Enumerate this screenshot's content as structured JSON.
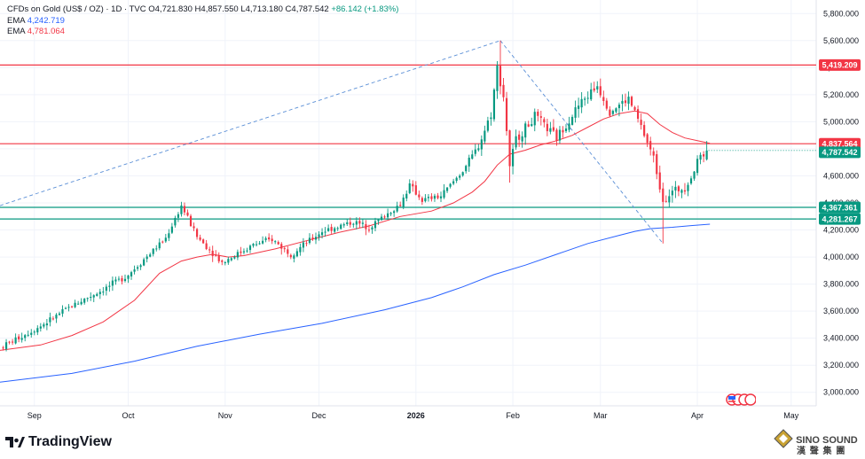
{
  "header": {
    "symbol": "CFDs on Gold (US$ / OZ) · 1D · TVC",
    "open_label": "O",
    "open": "4,721.830",
    "high_label": "H",
    "high": "4,857.550",
    "low_label": "L",
    "low": "4,713.180",
    "close_label": "C",
    "close": "4,787.542",
    "change": "+86.142 (+1.83%)"
  },
  "indicators": [
    {
      "name": "EMA",
      "value": "4,242.719",
      "color": "#2962ff"
    },
    {
      "name": "EMA",
      "value": "4,781.064",
      "color": "#f23645"
    }
  ],
  "branding": {
    "logo_text": "TradingView",
    "watermark": "SINO SOUND",
    "watermark_cn": "漢 聲 集 團"
  },
  "chart_data": {
    "type": "candlestick",
    "title": "CFDs on Gold (US$ / OZ) · 1D · TVC",
    "ylim": [
      2900,
      5900
    ],
    "y_ticks": [
      "3,000.000",
      "3,200.000",
      "3,400.000",
      "3,600.000",
      "3,800.000",
      "4,000.000",
      "4,200.000",
      "4,400.000",
      "4,600.000",
      "4,800.000",
      "5,000.000",
      "5,200.000",
      "5,400.000",
      "5,600.000",
      "5,800.000"
    ],
    "x_labels": [
      {
        "label": "Sep",
        "day": 8,
        "bold": false
      },
      {
        "label": "Oct",
        "day": 38,
        "bold": false
      },
      {
        "label": "Nov",
        "day": 69,
        "bold": false
      },
      {
        "label": "Dec",
        "day": 99,
        "bold": false
      },
      {
        "label": "2026",
        "day": 130,
        "bold": true
      },
      {
        "label": "Feb",
        "day": 161,
        "bold": false
      },
      {
        "label": "Mar",
        "day": 189,
        "bold": false
      },
      {
        "label": "Apr",
        "day": 220,
        "bold": false
      },
      {
        "label": "May",
        "day": 250,
        "bold": false
      }
    ],
    "xlim": [
      -3,
      258
    ],
    "horizontal_levels": [
      {
        "value": 5419.209,
        "label": "5,419.209",
        "color": "#f23645"
      },
      {
        "value": 4837.564,
        "label": "4,837.564",
        "color": "#f23645"
      },
      {
        "value": 4367.361,
        "label": "4,367.361",
        "color": "#089981"
      },
      {
        "value": 4281.267,
        "label": "4,281.267",
        "color": "#089981"
      }
    ],
    "last_price": {
      "value": 4787.542,
      "label": "4,787.542",
      "color": "#089981"
    },
    "trend_lines": [
      {
        "from": [
          -3,
          4380
        ],
        "to": [
          157,
          5600
        ]
      },
      {
        "from": [
          157,
          5600
        ],
        "to": [
          209,
          4100
        ]
      }
    ],
    "control_points": [
      [
        -3,
        3330
      ],
      [
        10,
        3490
      ],
      [
        20,
        3640
      ],
      [
        30,
        3760
      ],
      [
        38,
        3870
      ],
      [
        50,
        4140
      ],
      [
        55,
        4380
      ],
      [
        60,
        4150
      ],
      [
        68,
        3960
      ],
      [
        78,
        4090
      ],
      [
        84,
        4130
      ],
      [
        90,
        4020
      ],
      [
        100,
        4190
      ],
      [
        110,
        4260
      ],
      [
        115,
        4220
      ],
      [
        125,
        4390
      ],
      [
        128,
        4530
      ],
      [
        132,
        4420
      ],
      [
        138,
        4450
      ],
      [
        145,
        4640
      ],
      [
        150,
        4820
      ],
      [
        154,
        5060
      ],
      [
        156,
        5400
      ],
      [
        158,
        5190
      ],
      [
        160,
        4680
      ],
      [
        162,
        4870
      ],
      [
        168,
        5040
      ],
      [
        175,
        4880
      ],
      [
        182,
        5120
      ],
      [
        188,
        5270
      ],
      [
        192,
        5080
      ],
      [
        198,
        5170
      ],
      [
        202,
        4960
      ],
      [
        206,
        4730
      ],
      [
        209,
        4430
      ],
      [
        212,
        4480
      ],
      [
        216,
        4520
      ],
      [
        219,
        4640
      ],
      [
        221,
        4760
      ],
      [
        223,
        4780
      ]
    ],
    "ema_fast": [
      [
        -3,
        3310
      ],
      [
        10,
        3350
      ],
      [
        20,
        3420
      ],
      [
        30,
        3520
      ],
      [
        40,
        3680
      ],
      [
        48,
        3880
      ],
      [
        55,
        3970
      ],
      [
        60,
        4000
      ],
      [
        65,
        4020
      ],
      [
        70,
        4000
      ],
      [
        75,
        4010
      ],
      [
        85,
        4060
      ],
      [
        95,
        4120
      ],
      [
        105,
        4180
      ],
      [
        115,
        4230
      ],
      [
        125,
        4300
      ],
      [
        135,
        4340
      ],
      [
        142,
        4400
      ],
      [
        148,
        4480
      ],
      [
        152,
        4560
      ],
      [
        156,
        4680
      ],
      [
        160,
        4760
      ],
      [
        165,
        4790
      ],
      [
        170,
        4830
      ],
      [
        175,
        4860
      ],
      [
        180,
        4900
      ],
      [
        185,
        4960
      ],
      [
        190,
        5020
      ],
      [
        195,
        5060
      ],
      [
        200,
        5080
      ],
      [
        204,
        5060
      ],
      [
        208,
        4980
      ],
      [
        212,
        4920
      ],
      [
        216,
        4880
      ],
      [
        220,
        4860
      ],
      [
        224,
        4840
      ]
    ],
    "ema_slow": [
      [
        -3,
        3075
      ],
      [
        20,
        3140
      ],
      [
        40,
        3230
      ],
      [
        60,
        3340
      ],
      [
        80,
        3430
      ],
      [
        100,
        3510
      ],
      [
        120,
        3610
      ],
      [
        135,
        3700
      ],
      [
        145,
        3780
      ],
      [
        155,
        3870
      ],
      [
        165,
        3940
      ],
      [
        175,
        4020
      ],
      [
        185,
        4100
      ],
      [
        195,
        4160
      ],
      [
        200,
        4190
      ],
      [
        205,
        4210
      ],
      [
        212,
        4220
      ],
      [
        218,
        4232
      ],
      [
        224,
        4243
      ]
    ],
    "open": 4721.83,
    "high": 4857.55,
    "low": 4713.18,
    "close": 4787.542,
    "change": 86.142,
    "change_pct": 1.83
  }
}
